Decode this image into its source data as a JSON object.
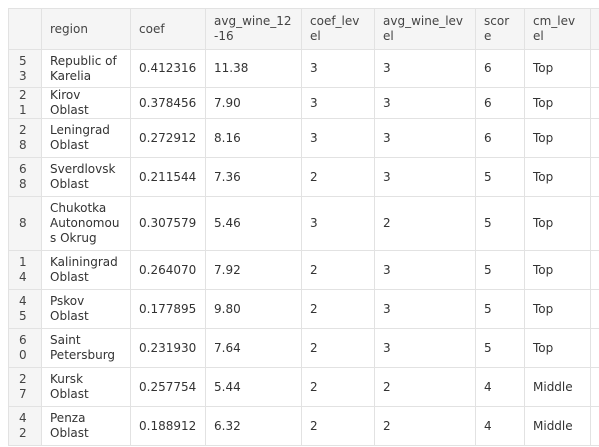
{
  "table": {
    "columns": [
      "",
      "region",
      "coef",
      "avg_wine_12-16",
      "coef_level",
      "avg_wine_level",
      "score",
      "cm_level",
      "c"
    ],
    "rows": [
      {
        "index": "53",
        "region": "Republic of Karelia",
        "coef": "0.412316",
        "avg_wine_12_16": "11.38",
        "coef_level": "3",
        "avg_wine_level": "3",
        "score": "6",
        "cm_level": "Top",
        "extra": ""
      },
      {
        "index": "21",
        "region": "Kirov Oblast",
        "coef": "0.378456",
        "avg_wine_12_16": "7.90",
        "coef_level": "3",
        "avg_wine_level": "3",
        "score": "6",
        "cm_level": "Top",
        "extra": ""
      },
      {
        "index": "28",
        "region": "Leningrad Oblast",
        "coef": "0.272912",
        "avg_wine_12_16": "8.16",
        "coef_level": "3",
        "avg_wine_level": "3",
        "score": "6",
        "cm_level": "Top",
        "extra": ""
      },
      {
        "index": "68",
        "region": "Sverdlovsk Oblast",
        "coef": "0.211544",
        "avg_wine_12_16": "7.36",
        "coef_level": "2",
        "avg_wine_level": "3",
        "score": "5",
        "cm_level": "Top",
        "extra": ""
      },
      {
        "index": "8",
        "region": "Chukotka Autonomous Okrug",
        "coef": "0.307579",
        "avg_wine_12_16": "5.46",
        "coef_level": "3",
        "avg_wine_level": "2",
        "score": "5",
        "cm_level": "Top",
        "extra": ""
      },
      {
        "index": "14",
        "region": "Kaliningrad Oblast",
        "coef": "0.264070",
        "avg_wine_12_16": "7.92",
        "coef_level": "2",
        "avg_wine_level": "3",
        "score": "5",
        "cm_level": "Top",
        "extra": ""
      },
      {
        "index": "45",
        "region": "Pskov Oblast",
        "coef": "0.177895",
        "avg_wine_12_16": "9.80",
        "coef_level": "2",
        "avg_wine_level": "3",
        "score": "5",
        "cm_level": "Top",
        "extra": ""
      },
      {
        "index": "60",
        "region": "Saint Petersburg",
        "coef": "0.231930",
        "avg_wine_12_16": "7.64",
        "coef_level": "2",
        "avg_wine_level": "3",
        "score": "5",
        "cm_level": "Top",
        "extra": ""
      },
      {
        "index": "27",
        "region": "Kursk Oblast",
        "coef": "0.257754",
        "avg_wine_12_16": "5.44",
        "coef_level": "2",
        "avg_wine_level": "2",
        "score": "4",
        "cm_level": "Middle",
        "extra": ""
      },
      {
        "index": "42",
        "region": "Penza Oblast",
        "coef": "0.188912",
        "avg_wine_12_16": "6.32",
        "coef_level": "2",
        "avg_wine_level": "2",
        "score": "4",
        "cm_level": "Middle",
        "extra": ""
      }
    ]
  }
}
